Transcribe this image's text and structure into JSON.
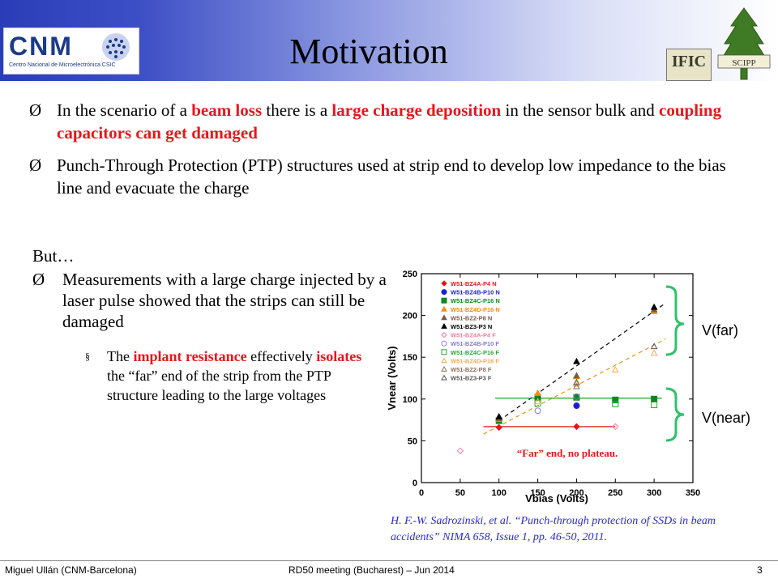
{
  "title": "Motivation",
  "logos": {
    "cnm_main": "CNM",
    "cnm_sub": "Centro Nacional de Microelectrónica CSIC",
    "ific": "IFIC",
    "scipp": "SCIPP"
  },
  "bullets": [
    {
      "marker": "Ø",
      "parts": [
        {
          "t": "In the scenario of a ",
          "h": false
        },
        {
          "t": "beam loss",
          "h": true
        },
        {
          "t": " there is a ",
          "h": false
        },
        {
          "t": "large charge deposition",
          "h": true
        },
        {
          "t": " in the sensor bulk and ",
          "h": false
        },
        {
          "t": "coupling capacitors can get damaged",
          "h": true
        }
      ]
    },
    {
      "marker": "Ø",
      "parts": [
        {
          "t": "Punch-Through Protection (PTP) structures used at strip end to develop low impedance to the bias line and evacuate the charge",
          "h": false
        }
      ]
    }
  ],
  "but_label": "But…",
  "sub_bullet": {
    "marker": "Ø",
    "text": "Measurements with a large charge injected by a laser pulse showed that the strips can still be damaged"
  },
  "subsub_bullet": {
    "marker": "§",
    "parts": [
      {
        "t": "The ",
        "h": false
      },
      {
        "t": "implant resistance",
        "h": true
      },
      {
        "t": " effectively ",
        "h": false
      },
      {
        "t": "isolates",
        "h": true
      },
      {
        "t": " the “far” end of the strip from the PTP structure leading to the large voltages",
        "h": false
      }
    ]
  },
  "chart_data": {
    "type": "scatter",
    "xlabel": "Vbias (Volts)",
    "ylabel": "Vnear (Volts)",
    "xlim": [
      0,
      350
    ],
    "ylim": [
      0,
      250
    ],
    "xticks": [
      0,
      50,
      100,
      150,
      200,
      250,
      300,
      350
    ],
    "yticks": [
      0,
      50,
      100,
      150,
      200,
      250
    ],
    "grid": false,
    "legend_position": "top-left",
    "annotation": "“Far” end, no plateau.",
    "far_bracket_label": "V(far)",
    "near_bracket_label": "V(near)",
    "series": [
      {
        "name": "W51-BZ4A-P4 N",
        "color": "#e8161b",
        "marker": "diamond",
        "filled": true,
        "x": [
          100,
          200
        ],
        "y": [
          66,
          67
        ]
      },
      {
        "name": "W51-BZ4B-P10 N",
        "color": "#1a22d8",
        "marker": "circle",
        "filled": true,
        "x": [
          100,
          150,
          200
        ],
        "y": [
          75,
          103,
          92
        ]
      },
      {
        "name": "W51-BZ4C-P16 N",
        "color": "#0a8a1c",
        "marker": "square",
        "filled": true,
        "x": [
          100,
          150,
          200,
          250,
          300
        ],
        "y": [
          74,
          102,
          102,
          99,
          100
        ]
      },
      {
        "name": "W51-BZ4D-P16 N",
        "color": "#ff8a00",
        "marker": "triangle",
        "filled": true,
        "x": [
          100,
          150,
          200,
          300
        ],
        "y": [
          76,
          107,
          127,
          205
        ]
      },
      {
        "name": "W51-BZ2-P8 N",
        "color": "#7a5a4a",
        "marker": "triangle",
        "filled": true,
        "x": [
          100,
          200,
          300
        ],
        "y": [
          77,
          128,
          207
        ]
      },
      {
        "name": "W51-BZ3-P3 N",
        "color": "#000000",
        "marker": "triangle",
        "filled": true,
        "x": [
          100,
          200,
          300
        ],
        "y": [
          79,
          145,
          210
        ]
      },
      {
        "name": "W51-BZ4A-P4 F",
        "color": "#f27ea0",
        "marker": "diamond",
        "filled": false,
        "x": [
          50,
          250
        ],
        "y": [
          38,
          67
        ]
      },
      {
        "name": "W51-BZ4B-P10 F",
        "color": "#8a7ad8",
        "marker": "circle",
        "filled": false,
        "x": [
          150,
          200
        ],
        "y": [
          86,
          103
        ]
      },
      {
        "name": "W51-BZ4C-P16 F",
        "color": "#2aa838",
        "marker": "square",
        "filled": false,
        "x": [
          150,
          250,
          300
        ],
        "y": [
          95,
          94,
          93
        ]
      },
      {
        "name": "W51-BZ4D-P16 F",
        "color": "#ffa850",
        "marker": "triangle",
        "filled": false,
        "x": [
          150,
          200,
          250,
          300
        ],
        "y": [
          97,
          118,
          135,
          155
        ]
      },
      {
        "name": "W51-BZ2-P8 F",
        "color": "#8a7060",
        "marker": "triangle",
        "filled": false,
        "x": [
          200
        ],
        "y": [
          115
        ]
      },
      {
        "name": "W51-BZ3-P3 F",
        "color": "#555555",
        "marker": "triangle",
        "filled": false,
        "x": [
          200,
          300
        ],
        "y": [
          120,
          163
        ]
      }
    ],
    "fit_lines": [
      {
        "color": "#000000",
        "dash": true,
        "x": [
          100,
          315
        ],
        "y": [
          74,
          215
        ]
      },
      {
        "color": "#e09a10",
        "dash": true,
        "x": [
          80,
          315
        ],
        "y": [
          58,
          172
        ]
      },
      {
        "color": "#14a820",
        "dash": false,
        "x": [
          95,
          310
        ],
        "y": [
          101,
          101
        ]
      },
      {
        "color": "#e8161b",
        "dash": false,
        "x": [
          80,
          250
        ],
        "y": [
          67,
          67
        ]
      }
    ]
  },
  "reference": "H. F.-W. Sadrozinski, et al. “Punch-through protection of SSDs in beam accidents” NIMA 658, Issue 1, pp. 46-50, 2011.",
  "footer": {
    "author": "Miguel Ullán (CNM-Barcelona)",
    "meeting": "RD50 meeting (Bucharest) – Jun 2014",
    "page": "3"
  }
}
